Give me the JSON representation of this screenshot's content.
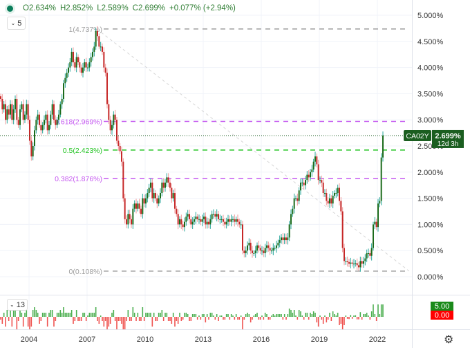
{
  "legend": {
    "open": "O2.634%",
    "high": "H2.852%",
    "low": "L2.589%",
    "close": "C2.699%",
    "change": "+0.077% (+2.94%)"
  },
  "interval_label": "5",
  "volume_interval_label": "13",
  "symbol_label": "CA02Y",
  "last_price_label": "2.699%",
  "countdown_label": "12d 3h",
  "volume_scale": {
    "top": "5.00",
    "bottom": "0.00"
  },
  "colors": {
    "up": "#1b6b1b",
    "down": "#c62828",
    "last": "#1b5e20",
    "fib_pink": "#c558f0",
    "fib_green": "#22c322",
    "fib_gray": "#9e9e9e"
  },
  "settings_icon": "gear-icon",
  "chart_data": {
    "type": "candlestick",
    "price_axis": {
      "ticks": [
        "5.000%",
        "4.500%",
        "4.000%",
        "3.500%",
        "3.000%",
        "2.500%",
        "2.000%",
        "1.500%",
        "1.000%",
        "0.500%",
        "0.000%"
      ],
      "range": [
        0,
        5
      ]
    },
    "time_axis": {
      "ticks": [
        "2004",
        "2007",
        "2010",
        "2013",
        "2016",
        "2019",
        "2022"
      ]
    },
    "start": "2002-07",
    "frequency": "monthly",
    "closes": [
      3.4,
      3.2,
      3.3,
      3.0,
      3.2,
      3.1,
      3.3,
      3.0,
      3.2,
      3.4,
      3.0,
      2.9,
      3.2,
      3.3,
      3.0,
      3.1,
      3.3,
      3.0,
      2.6,
      2.3,
      2.5,
      2.8,
      3.0,
      3.1,
      2.9,
      2.8,
      2.9,
      3.0,
      3.1,
      2.8,
      2.9,
      3.1,
      3.3,
      3.0,
      2.9,
      3.0,
      3.1,
      3.3,
      3.4,
      3.7,
      3.8,
      3.9,
      4.0,
      4.1,
      4.3,
      4.1,
      4.0,
      4.2,
      4.1,
      4.0,
      3.9,
      4.0,
      4.1,
      4.0,
      4.0,
      4.1,
      4.2,
      4.3,
      4.4,
      4.7,
      4.6,
      4.4,
      4.4,
      4.3,
      4.0,
      3.9,
      3.3,
      3.0,
      2.8,
      2.9,
      3.1,
      3.0,
      2.6,
      2.5,
      2.4,
      2.2,
      1.5,
      1.1,
      1.0,
      1.2,
      1.1,
      1.0,
      1.3,
      1.4,
      1.3,
      1.4,
      1.3,
      1.2,
      1.5,
      1.4,
      1.5,
      1.6,
      1.7,
      1.8,
      1.5,
      1.6,
      1.5,
      1.4,
      1.5,
      1.6,
      1.8,
      1.7,
      1.8,
      1.9,
      1.8,
      1.7,
      1.5,
      1.6,
      1.3,
      1.2,
      1.0,
      1.1,
      1.0,
      0.95,
      1.05,
      1.15,
      1.2,
      1.1,
      1.0,
      1.05,
      1.1,
      1.15,
      1.1,
      1.1,
      1.05,
      1.1,
      1.15,
      1.0,
      1.05,
      1.0,
      1.1,
      1.2,
      1.2,
      1.15,
      1.2,
      1.1,
      1.1,
      1.1,
      1.05,
      1.0,
      1.05,
      1.1,
      1.05,
      1.1,
      1.1,
      1.05,
      1.1,
      1.05,
      1.0,
      1.0,
      0.5,
      0.45,
      0.5,
      0.6,
      0.65,
      0.5,
      0.45,
      0.45,
      0.5,
      0.6,
      0.55,
      0.5,
      0.5,
      0.45,
      0.55,
      0.6,
      0.55,
      0.5,
      0.5,
      0.55,
      0.55,
      0.6,
      0.65,
      0.7,
      0.75,
      0.7,
      0.75,
      0.7,
      0.75,
      1.0,
      1.2,
      1.3,
      1.5,
      1.5,
      1.45,
      1.65,
      1.8,
      1.8,
      1.75,
      1.85,
      1.95,
      1.9,
      2.0,
      2.05,
      2.2,
      2.3,
      2.15,
      1.85,
      1.85,
      1.8,
      1.6,
      1.6,
      1.45,
      1.4,
      1.5,
      1.4,
      1.55,
      1.6,
      1.6,
      1.7,
      1.45,
      1.25,
      0.55,
      0.3,
      0.3,
      0.28,
      0.25,
      0.27,
      0.25,
      0.25,
      0.26,
      0.22,
      0.18,
      0.3,
      0.25,
      0.3,
      0.35,
      0.45,
      0.45,
      0.4,
      0.55,
      1.0,
      1.05,
      0.95,
      1.4,
      1.45,
      2.28,
      2.699
    ],
    "fib_levels": [
      {
        "label": "1(4.737%)",
        "value": 4.737,
        "color": "gray"
      },
      {
        "label": "0.618(2.969%)",
        "value": 2.969,
        "color": "pink"
      },
      {
        "label": "0.5(2.423%)",
        "value": 2.423,
        "color": "green"
      },
      {
        "label": "0.382(1.876%)",
        "value": 1.876,
        "color": "pink"
      },
      {
        "label": "0(0.108%)",
        "value": 0.108,
        "color": "gray"
      }
    ],
    "last_price": 2.699
  }
}
